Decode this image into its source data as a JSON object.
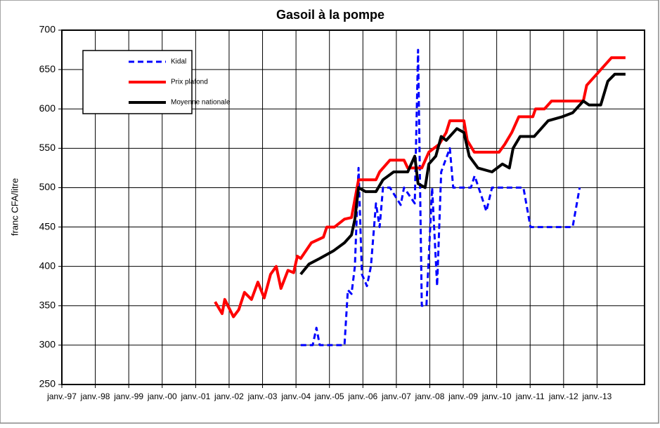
{
  "chart_data": {
    "type": "line",
    "title": "Gasoil à la pompe",
    "y_label": "franc CFA/litre",
    "xlim": [
      1997,
      2014.42
    ],
    "ylim": [
      250,
      700
    ],
    "yticks": [
      250,
      300,
      350,
      400,
      450,
      500,
      550,
      600,
      650,
      700
    ],
    "xticks": [
      {
        "value": 1997,
        "label": "janv.-97"
      },
      {
        "value": 1998,
        "label": "janv.-98"
      },
      {
        "value": 1999,
        "label": "janv.-99"
      },
      {
        "value": 2000,
        "label": "janv.-00"
      },
      {
        "value": 2001,
        "label": "janv.-01"
      },
      {
        "value": 2002,
        "label": "janv.-02"
      },
      {
        "value": 2003,
        "label": "janv.-03"
      },
      {
        "value": 2004,
        "label": "janv.-04"
      },
      {
        "value": 2005,
        "label": "janv.-05"
      },
      {
        "value": 2006,
        "label": "janv.-06"
      },
      {
        "value": 2007,
        "label": "janv.-07"
      },
      {
        "value": 2008,
        "label": "janv.-08"
      },
      {
        "value": 2009,
        "label": "janv.-09"
      },
      {
        "value": 2010,
        "label": "janv.-10"
      },
      {
        "value": 2011,
        "label": "janv.-11"
      },
      {
        "value": 2012,
        "label": "janv.-12"
      },
      {
        "value": 2013,
        "label": "janv.-13"
      }
    ],
    "grid": true,
    "legend": "upper left",
    "series": [
      {
        "name": "Kidal",
        "color": "#0000ff",
        "dashed": true,
        "x": [
          2004.14,
          2004.5,
          2004.61,
          2004.71,
          2005.45,
          2005.55,
          2005.66,
          2005.76,
          2005.87,
          2005.97,
          2006.12,
          2006.24,
          2006.39,
          2006.5,
          2006.6,
          2006.81,
          2007.13,
          2007.23,
          2007.55,
          2007.65,
          2007.76,
          2007.9,
          2008.07,
          2008.22,
          2008.34,
          2008.6,
          2008.7,
          2009.23,
          2009.34,
          2009.54,
          2009.69,
          2009.86,
          2010.8,
          2011.01,
          2012.27,
          2012.48
        ],
        "values": [
          300,
          300,
          322,
          300,
          300,
          370,
          365,
          400,
          525,
          390,
          375,
          400,
          480,
          450,
          500,
          500,
          478,
          500,
          480,
          675,
          350,
          350,
          500,
          375,
          520,
          550,
          500,
          500,
          515,
          490,
          470,
          500,
          500,
          450,
          450,
          500
        ]
      },
      {
        "name": "Prix plafond",
        "color": "#ff0000",
        "dashed": false,
        "x": [
          2001.58,
          2001.79,
          2001.87,
          2002.13,
          2002.29,
          2002.46,
          2002.67,
          2002.86,
          2003.05,
          2003.24,
          2003.41,
          2003.55,
          2003.76,
          2003.93,
          2004.04,
          2004.14,
          2004.46,
          2004.82,
          2004.92,
          2005.15,
          2005.45,
          2005.66,
          2005.76,
          2005.87,
          2006.39,
          2006.5,
          2006.81,
          2007.23,
          2007.34,
          2007.76,
          2007.97,
          2008.28,
          2008.49,
          2008.6,
          2009.02,
          2009.12,
          2009.33,
          2010.07,
          2010.24,
          2010.45,
          2010.66,
          2011.08,
          2011.16,
          2011.43,
          2011.64,
          2012.59,
          2012.69,
          2013.01,
          2013.43,
          2013.85
        ],
        "values": [
          355,
          340,
          358,
          336,
          345,
          367,
          358,
          380,
          360,
          390,
          400,
          372,
          395,
          392,
          413,
          410,
          430,
          437,
          450,
          450,
          460,
          462,
          485,
          510,
          510,
          520,
          535,
          535,
          525,
          525,
          545,
          555,
          570,
          585,
          585,
          560,
          545,
          545,
          555,
          570,
          590,
          590,
          600,
          600,
          610,
          610,
          630,
          645,
          665,
          665
        ]
      },
      {
        "name": "Moyenne nationale",
        "color": "#000000",
        "dashed": false,
        "x": [
          2004.14,
          2004.39,
          2004.71,
          2005.13,
          2005.45,
          2005.66,
          2005.76,
          2005.87,
          2006.08,
          2006.39,
          2006.6,
          2006.92,
          2007.34,
          2007.55,
          2007.65,
          2007.86,
          2007.97,
          2008.18,
          2008.34,
          2008.49,
          2008.81,
          2009.02,
          2009.18,
          2009.44,
          2009.86,
          2010.17,
          2010.38,
          2010.49,
          2010.7,
          2011.12,
          2011.54,
          2011.96,
          2012.27,
          2012.59,
          2012.76,
          2012.9,
          2013.11,
          2013.32,
          2013.53,
          2013.85
        ],
        "values": [
          390,
          403,
          410,
          420,
          430,
          440,
          460,
          500,
          495,
          495,
          510,
          520,
          520,
          540,
          505,
          500,
          530,
          540,
          565,
          560,
          575,
          570,
          540,
          525,
          520,
          530,
          525,
          550,
          565,
          565,
          585,
          590,
          595,
          610,
          605,
          605,
          605,
          635,
          644,
          644
        ]
      }
    ]
  }
}
